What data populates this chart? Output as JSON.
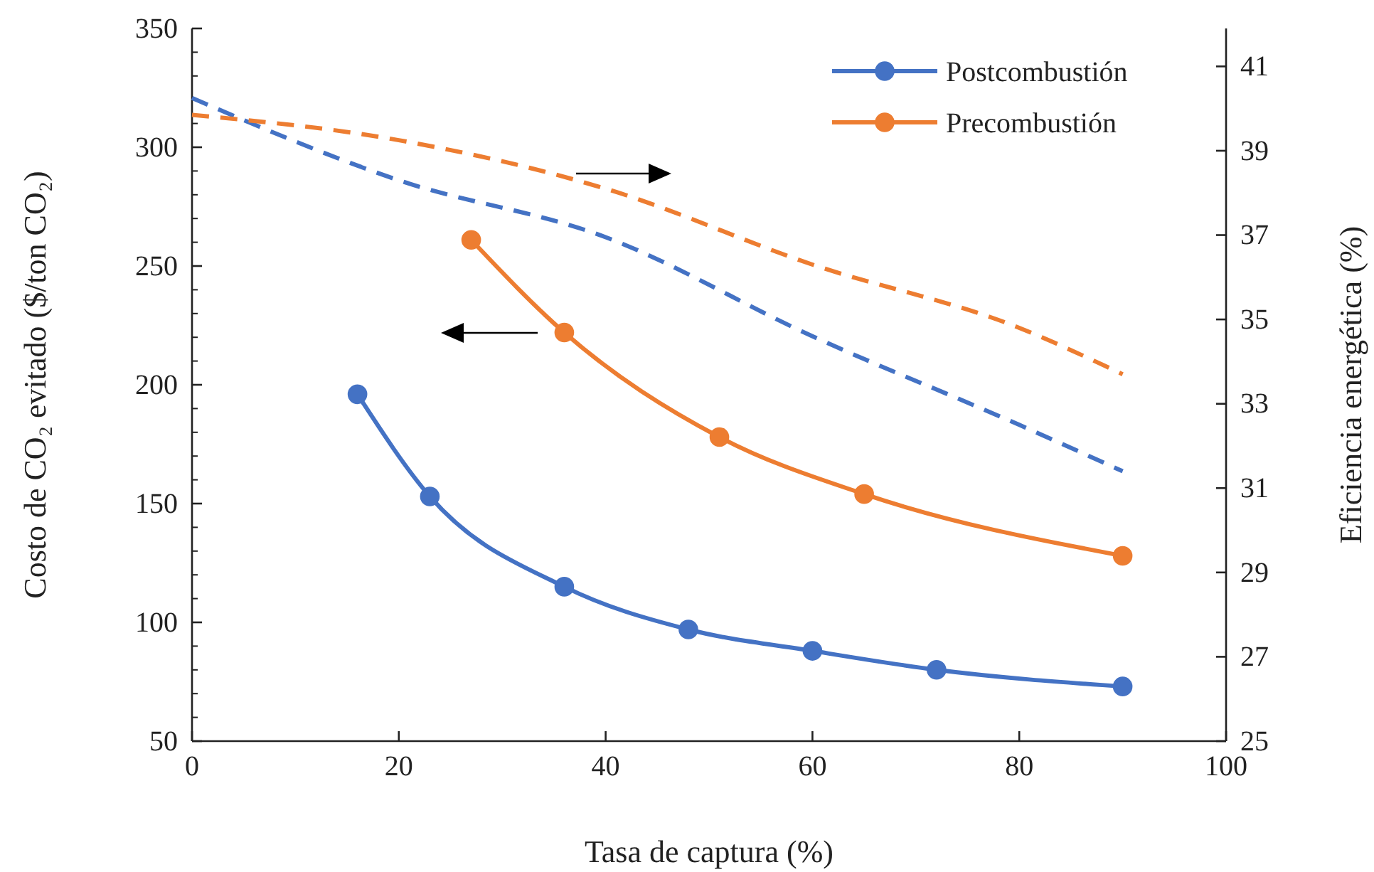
{
  "chart_data": {
    "type": "line",
    "xlabel": "Tasa de captura (%)",
    "ylabel": "Costo de CO₂ evitado ($/ton CO₂)",
    "y2label": "Eficiencia energética  (%)",
    "xlim": [
      0,
      100
    ],
    "xticks": [
      0,
      20,
      40,
      60,
      80,
      100
    ],
    "ylim": [
      50,
      350
    ],
    "yticks": [
      50,
      100,
      150,
      200,
      250,
      300,
      350
    ],
    "y2lim": [
      25,
      41.9
    ],
    "y2ticks": [
      25,
      27,
      29,
      31,
      33,
      35,
      37,
      39,
      41
    ],
    "legend": "top right",
    "grid": false,
    "series": [
      {
        "name": "Postcombustión",
        "color": "#4472c4",
        "marker": "circle",
        "line_style": "solid",
        "x": [
          16,
          23,
          36,
          48,
          60,
          72,
          90
        ],
        "values": [
          196,
          153,
          115,
          97,
          88,
          80,
          73
        ]
      },
      {
        "name": "Precombustión",
        "color": "#ed7d31",
        "marker": "circle",
        "line_style": "solid",
        "x": [
          27,
          36,
          51,
          65,
          90
        ],
        "values": [
          261,
          222,
          178,
          154,
          128
        ]
      },
      {
        "color": "#4472c4",
        "marker": "none",
        "line_style": "dashed",
        "axis": "y2",
        "x": [
          0,
          20,
          40,
          60,
          80,
          90
        ],
        "values": [
          40.25,
          38.3,
          36.95,
          34.6,
          32.5,
          31.4
        ]
      },
      {
        "color": "#ed7d31",
        "marker": "none",
        "line_style": "dashed",
        "axis": "y2",
        "x": [
          0,
          20,
          40,
          60,
          80,
          90
        ],
        "values": [
          39.85,
          39.25,
          38.1,
          36.3,
          34.8,
          33.7
        ]
      }
    ]
  }
}
